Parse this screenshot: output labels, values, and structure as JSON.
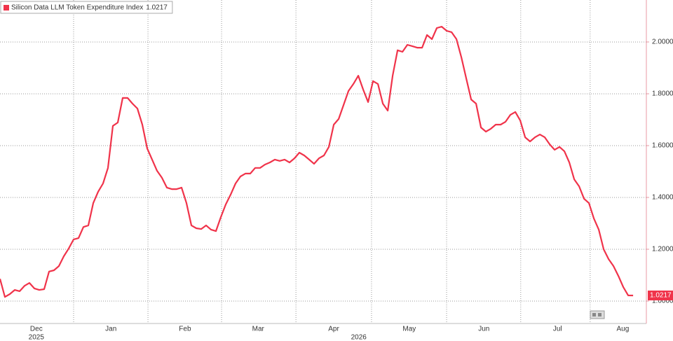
{
  "chart_data": {
    "type": "line",
    "series": [
      {
        "name": "Silicon Data LLM Token Expenditure Index",
        "color": "#f0334a",
        "values": [
          1.086,
          1.016,
          1.027,
          1.043,
          1.038,
          1.059,
          1.07,
          1.049,
          1.043,
          1.046,
          1.114,
          1.119,
          1.135,
          1.173,
          1.203,
          1.238,
          1.243,
          1.286,
          1.292,
          1.378,
          1.422,
          1.454,
          1.514,
          1.676,
          1.689,
          1.784,
          1.784,
          1.762,
          1.743,
          1.681,
          1.589,
          1.546,
          1.503,
          1.476,
          1.438,
          1.432,
          1.432,
          1.438,
          1.378,
          1.292,
          1.281,
          1.278,
          1.292,
          1.276,
          1.27,
          1.324,
          1.373,
          1.411,
          1.454,
          1.481,
          1.492,
          1.492,
          1.514,
          1.514,
          1.527,
          1.535,
          1.546,
          1.541,
          1.546,
          1.535,
          1.551,
          1.573,
          1.562,
          1.546,
          1.53,
          1.551,
          1.562,
          1.595,
          1.681,
          1.703,
          1.757,
          1.811,
          1.838,
          1.87,
          1.816,
          1.768,
          1.849,
          1.838,
          1.762,
          1.735,
          1.87,
          1.968,
          1.962,
          1.989,
          1.984,
          1.978,
          1.978,
          2.027,
          2.011,
          2.054,
          2.059,
          2.043,
          2.038,
          2.011,
          1.941,
          1.859,
          1.778,
          1.762,
          1.67,
          1.654,
          1.665,
          1.681,
          1.681,
          1.692,
          1.719,
          1.73,
          1.697,
          1.632,
          1.616,
          1.632,
          1.643,
          1.632,
          1.605,
          1.584,
          1.595,
          1.578,
          1.535,
          1.47,
          1.443,
          1.395,
          1.378,
          1.319,
          1.276,
          1.2,
          1.162,
          1.135,
          1.097,
          1.054,
          1.022,
          1.0217
        ]
      }
    ],
    "xlim": [
      0,
      131.7
    ],
    "xticks": [
      {
        "value": 7.4,
        "label": "Dec"
      },
      {
        "value": 22.6,
        "label": "Jan"
      },
      {
        "value": 37.7,
        "label": "Feb"
      },
      {
        "value": 52.6,
        "label": "Mar"
      },
      {
        "value": 68,
        "label": "Apr"
      },
      {
        "value": 83.4,
        "label": "May"
      },
      {
        "value": 98.6,
        "label": "Jun"
      },
      {
        "value": 113.6,
        "label": "Jul"
      },
      {
        "value": 126.9,
        "label": "Aug"
      }
    ],
    "year_labels": [
      {
        "value": 7.4,
        "label": "2025"
      },
      {
        "value": 73.1,
        "label": "2026"
      }
    ],
    "ylim": [
      0.9135,
      2.162
    ],
    "yticks": [
      {
        "value": 1,
        "label": "1.0000"
      },
      {
        "value": 1.2,
        "label": "1.2000"
      },
      {
        "value": 1.4,
        "label": "1.4000"
      },
      {
        "value": 1.6,
        "label": "1.6000"
      },
      {
        "value": 1.8,
        "label": "1.8000"
      },
      {
        "value": 2,
        "label": "2.0000"
      }
    ],
    "grid": true
  }
}
